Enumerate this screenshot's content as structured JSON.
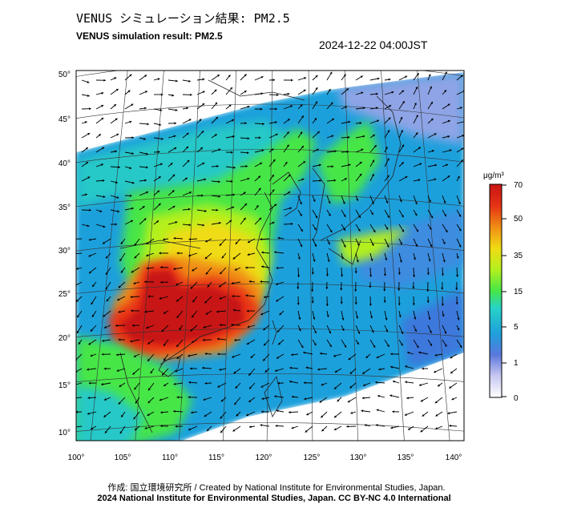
{
  "header": {
    "title_jp": "VENUS シミュレーション結果: PM2.5",
    "title_en": "VENUS simulation result: PM2.5",
    "datetime": "2024-12-22 04:00JST"
  },
  "map": {
    "lat_labels": [
      "50°",
      "45°",
      "40°",
      "35°",
      "30°",
      "25°",
      "20°",
      "15°",
      "10°"
    ],
    "lon_labels": [
      "100°",
      "105°",
      "110°",
      "115°",
      "120°",
      "125°",
      "130°",
      "135°",
      "140°"
    ]
  },
  "colorbar": {
    "unit": "μg/m³",
    "ticks": [
      "70",
      "50",
      "35",
      "15",
      "5",
      "1",
      "0"
    ],
    "colors": [
      "#ffffff",
      "#c8c8f0",
      "#5a78dc",
      "#1ea0dc",
      "#28d2c8",
      "#46e646",
      "#b4f01e",
      "#f0dc14",
      "#f08c14",
      "#e63214",
      "#c81414"
    ]
  },
  "footer": {
    "credit": "作成: 国立環境研究所 / Created by National Institute for Environmental Studies, Japan.",
    "copyright": "2024 National Institute for Environmental Studies, Japan. CC BY-NC 4.0 International"
  }
}
